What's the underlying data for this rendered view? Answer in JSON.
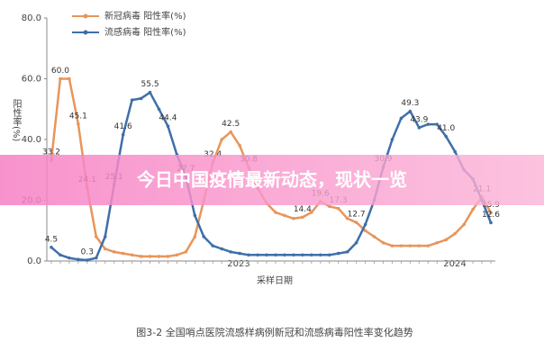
{
  "chart_data": {
    "type": "line",
    "y_label": "阳性率(%)",
    "x_label": "采样日期",
    "year_labels": [
      "2023",
      "2024"
    ],
    "caption": "图3-2 全国哨点医院流感样病例新冠和流感病毒阳性率变化趋势",
    "categories": [
      null,
      null,
      null,
      null,
      null,
      null,
      null,
      null,
      null,
      null,
      null,
      null,
      null,
      null,
      null,
      null,
      null,
      null,
      null,
      null,
      null,
      null,
      null,
      null,
      null,
      null,
      null,
      null,
      null,
      null,
      null,
      null,
      null,
      null,
      null,
      null,
      null,
      null,
      null,
      null,
      null,
      null,
      null,
      null,
      null,
      null,
      null,
      null,
      null,
      null
    ],
    "ylim": [
      0,
      80
    ],
    "yticks": [
      {
        "value": 0,
        "label": "0.0"
      },
      {
        "value": 20,
        "label": "20.0"
      },
      {
        "value": 40,
        "label": "40.0"
      },
      {
        "value": 60,
        "label": "60.0"
      },
      {
        "value": 80,
        "label": "80.0"
      }
    ],
    "series": [
      {
        "name": "新冠病毒 阳性率(%)",
        "color": "#e8955a",
        "values": [
          33.2,
          60.0,
          60,
          45.1,
          24.1,
          8,
          4,
          3,
          2.5,
          2,
          1.5,
          1.5,
          1.5,
          1.5,
          2,
          3,
          8,
          20,
          32.4,
          40,
          42.5,
          38,
          30.8,
          24,
          19,
          16,
          15,
          14,
          14.4,
          16,
          19.6,
          18,
          17.3,
          14,
          12.7,
          10,
          8,
          6,
          5,
          5,
          5,
          5,
          5,
          6,
          7,
          9,
          12,
          17,
          21.1,
          15.9
        ],
        "value_labels": [
          "33.2",
          "60.0",
          null,
          "45.1",
          "24.1",
          null,
          null,
          null,
          null,
          null,
          null,
          null,
          null,
          null,
          null,
          null,
          null,
          null,
          "32.4",
          null,
          "42.5",
          null,
          "30.8",
          null,
          null,
          null,
          null,
          null,
          "14.4",
          null,
          "19.6",
          null,
          "17.3",
          null,
          "12.7",
          null,
          null,
          null,
          null,
          null,
          null,
          null,
          null,
          null,
          null,
          null,
          null,
          null,
          "21.1",
          "15.9"
        ]
      },
      {
        "name": "流感病毒 阳性率(%)",
        "color": "#3f6fa8",
        "values": [
          4.5,
          2,
          1,
          0.5,
          0.3,
          1,
          8,
          25.1,
          41.6,
          53,
          53.5,
          55.5,
          50,
          44.4,
          35,
          27.7,
          15,
          8,
          5,
          4,
          3,
          2.5,
          2,
          2,
          2,
          2,
          2,
          2,
          2,
          2,
          2,
          2,
          2.5,
          3,
          6,
          12,
          20,
          30.9,
          40,
          47,
          49.3,
          43.9,
          45,
          45,
          41.0,
          36,
          30,
          27,
          20,
          12.6
        ],
        "value_labels": [
          "4.5",
          null,
          null,
          null,
          "0.3",
          null,
          null,
          "25.1",
          "41.6",
          null,
          null,
          "55.5",
          null,
          "44.4",
          null,
          "27.7",
          null,
          null,
          null,
          null,
          null,
          null,
          null,
          null,
          null,
          null,
          null,
          null,
          null,
          null,
          null,
          null,
          null,
          null,
          null,
          null,
          null,
          "30.9",
          null,
          null,
          "49.3",
          "43.9",
          null,
          null,
          "41.0",
          null,
          null,
          null,
          null,
          "12.6"
        ]
      }
    ]
  },
  "banner": {
    "text": "今日中国疫情最新动态，现状一览"
  }
}
